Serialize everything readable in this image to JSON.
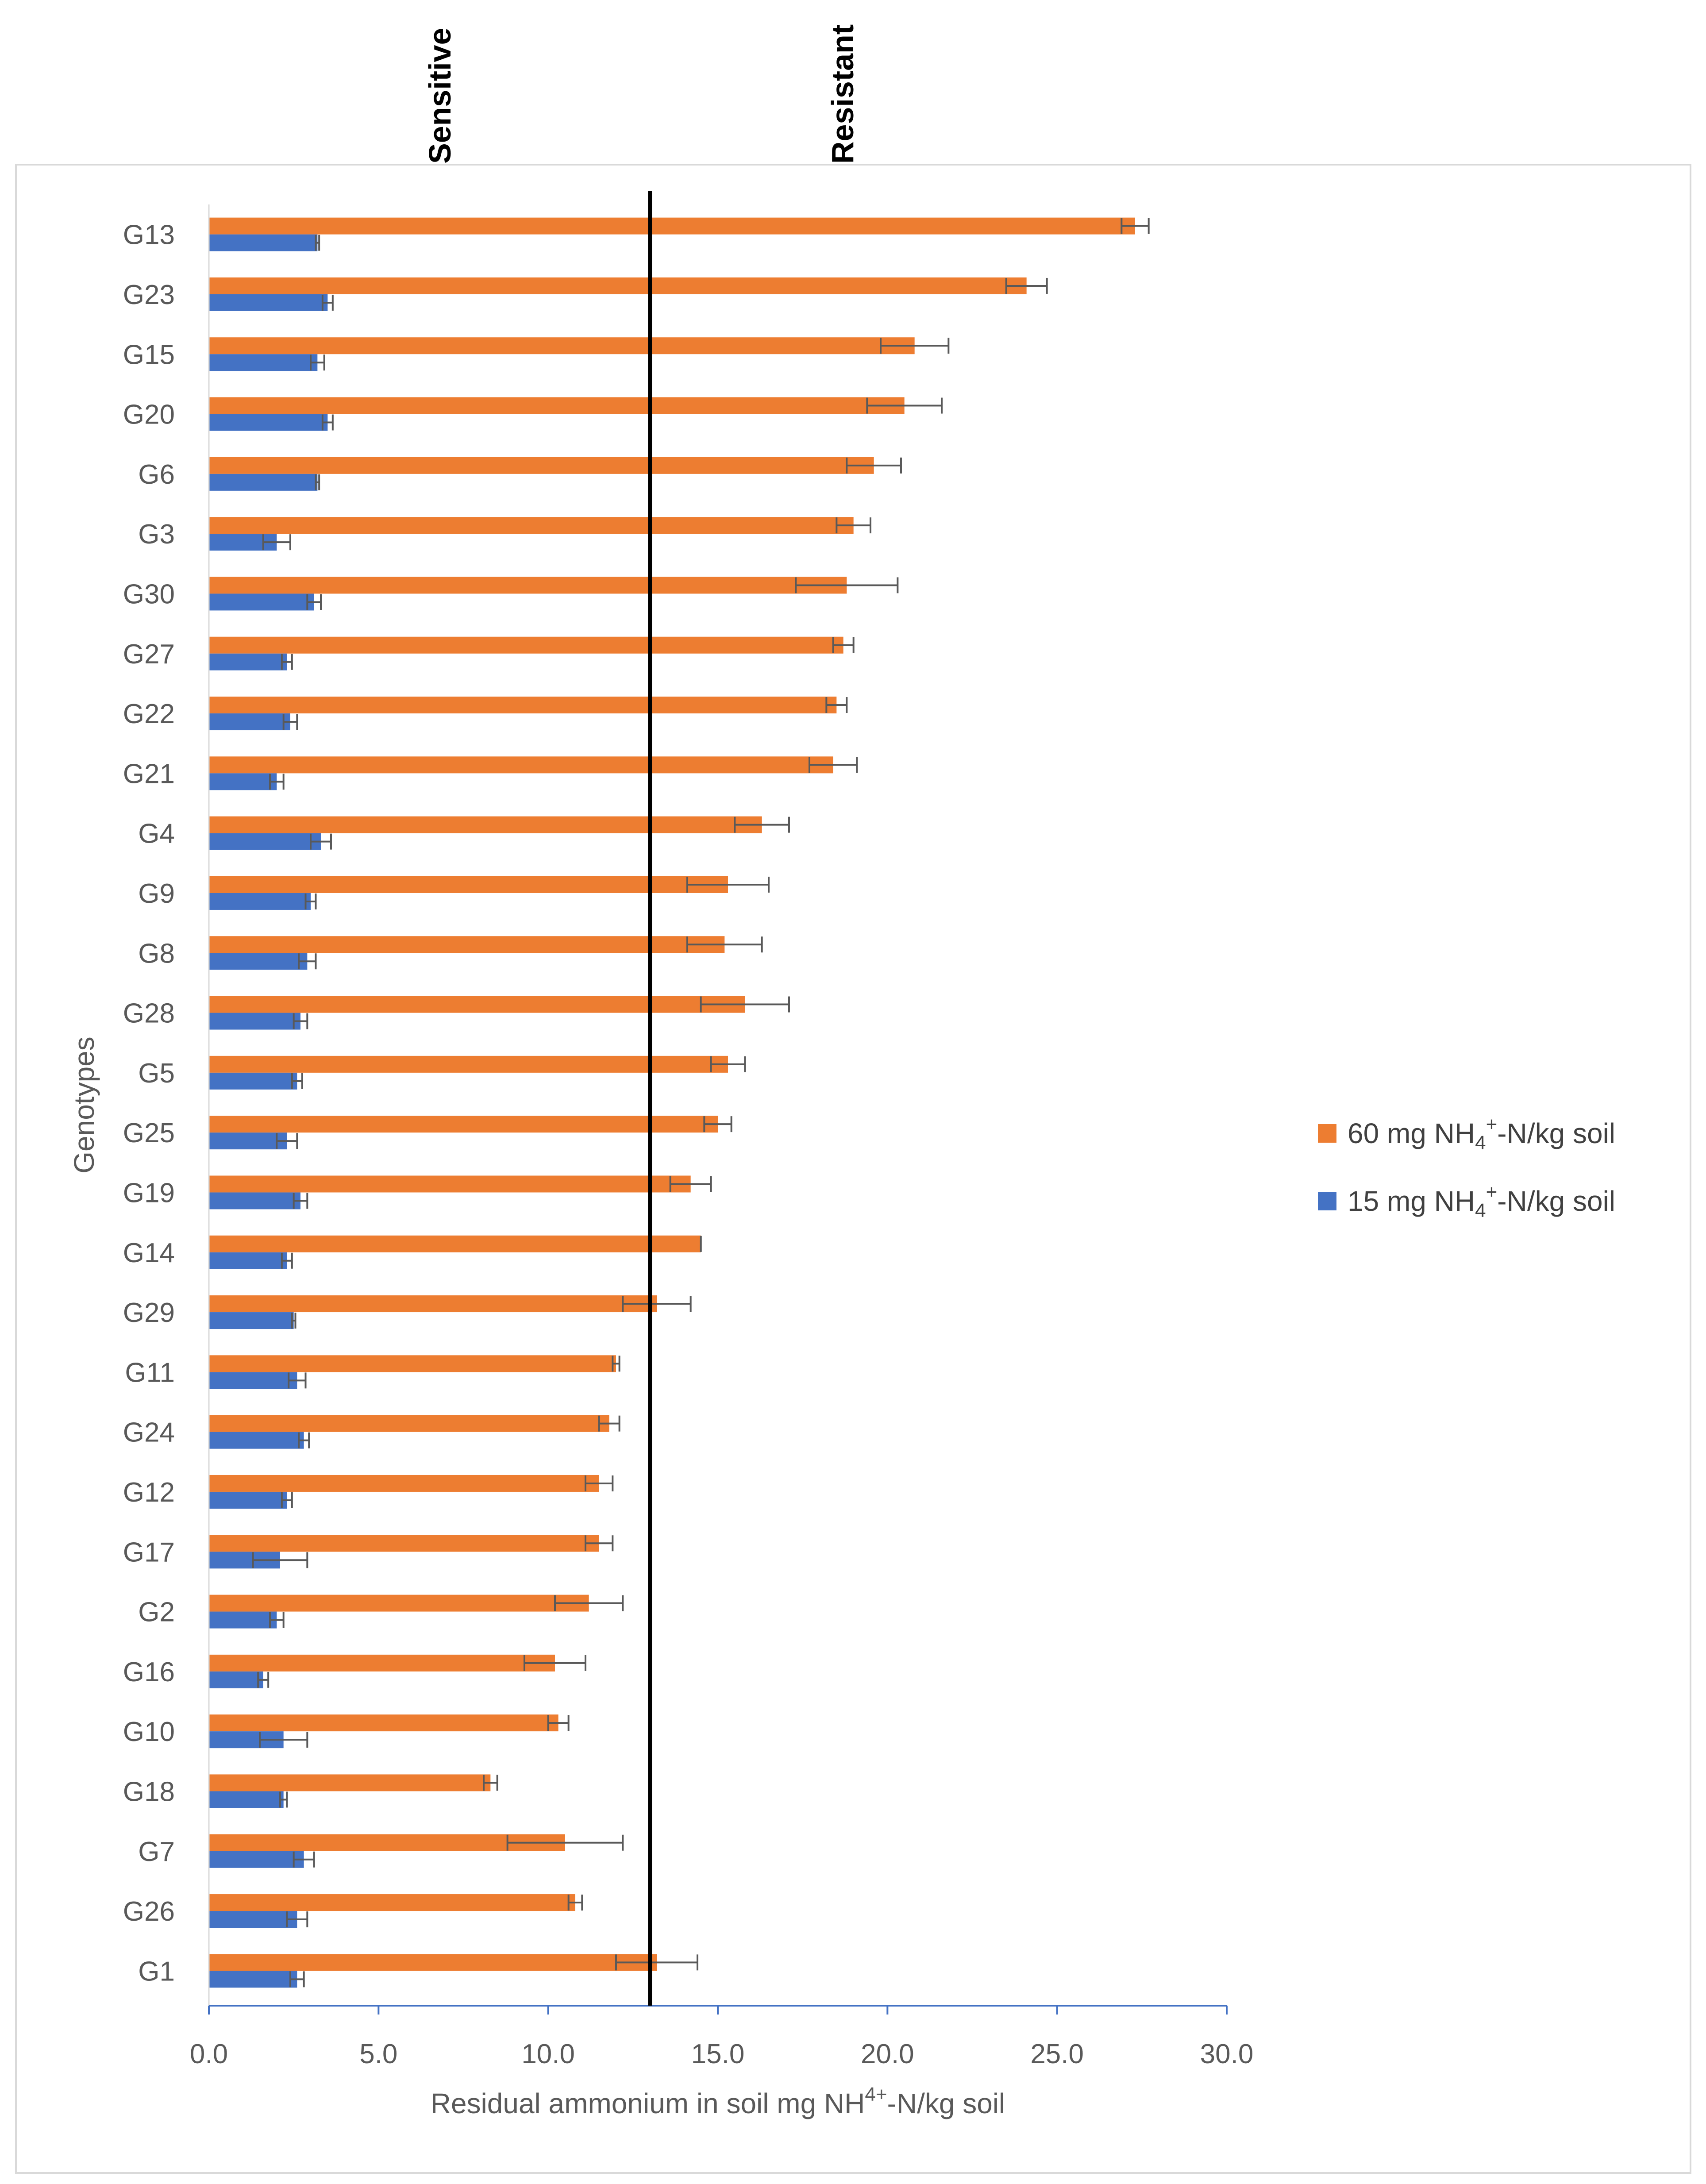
{
  "chart_data": {
    "type": "bar",
    "orientation": "horizontal",
    "title": "",
    "xlabel": "Residual ammonium in soil mg NH",
    "xlabel_sup": "4+",
    "xlabel_tail": "-N/kg soil",
    "ylabel": "Genotypes",
    "xlim": [
      0,
      30
    ],
    "x_ticks": [
      "0.0",
      "5.0",
      "10.0",
      "15.0",
      "20.0",
      "25.0",
      "30.0"
    ],
    "x_tick_values": [
      0,
      5,
      10,
      15,
      20,
      25,
      30
    ],
    "categories": [
      "G13",
      "G23",
      "G15",
      "G20",
      "G6",
      "G3",
      "G30",
      "G27",
      "G22",
      "G21",
      "G4",
      "G9",
      "G8",
      "G28",
      "G5",
      "G25",
      "G19",
      "G14",
      "G29",
      "G11",
      "G24",
      "G12",
      "G17",
      "G2",
      "G16",
      "G10",
      "G18",
      "G7",
      "G26",
      "G1"
    ],
    "series": [
      {
        "name": "60 mg NH4+-N/kg soil",
        "legend": {
          "pre": "60 mg NH",
          "sub": "4",
          "sup": "+",
          "post": "-N/kg soil"
        },
        "color": "#ED7D31",
        "values": [
          27.3,
          24.1,
          20.8,
          20.5,
          19.6,
          19.0,
          18.8,
          18.7,
          18.5,
          18.4,
          16.3,
          15.3,
          15.2,
          15.8,
          15.3,
          15.0,
          14.2,
          14.5,
          13.2,
          12.0,
          11.8,
          11.5,
          11.5,
          11.2,
          10.2,
          10.3,
          8.3,
          10.5,
          10.8,
          13.2
        ],
        "errors": [
          0.4,
          0.6,
          1.0,
          1.1,
          0.8,
          0.5,
          1.5,
          0.3,
          0.3,
          0.7,
          0.8,
          1.2,
          1.1,
          1.3,
          0.5,
          0.4,
          0.6,
          0.0,
          1.0,
          0.1,
          0.3,
          0.4,
          0.4,
          1.0,
          0.9,
          0.3,
          0.2,
          1.7,
          0.2,
          1.2
        ]
      },
      {
        "name": "15 mg NH4+-N/kg soil",
        "legend": {
          "pre": "15 mg NH",
          "sub": "4",
          "sup": "+",
          "post": "-N/kg soil"
        },
        "color": "#4472C4",
        "values": [
          3.2,
          3.5,
          3.2,
          3.5,
          3.2,
          2.0,
          3.1,
          2.3,
          2.4,
          2.0,
          3.3,
          3.0,
          2.9,
          2.7,
          2.6,
          2.3,
          2.7,
          2.3,
          2.5,
          2.6,
          2.8,
          2.3,
          2.1,
          2.0,
          1.6,
          2.2,
          2.2,
          2.8,
          2.6,
          2.6
        ],
        "errors": [
          0.05,
          0.15,
          0.2,
          0.15,
          0.05,
          0.4,
          0.2,
          0.15,
          0.2,
          0.2,
          0.3,
          0.15,
          0.25,
          0.2,
          0.15,
          0.3,
          0.2,
          0.15,
          0.05,
          0.25,
          0.15,
          0.15,
          0.8,
          0.2,
          0.15,
          0.7,
          0.1,
          0.3,
          0.3,
          0.2
        ]
      }
    ],
    "threshold": {
      "value": 13.0,
      "labels": [
        "Sensitive",
        "Resistant"
      ]
    },
    "legend_position": "right",
    "grid": false
  }
}
